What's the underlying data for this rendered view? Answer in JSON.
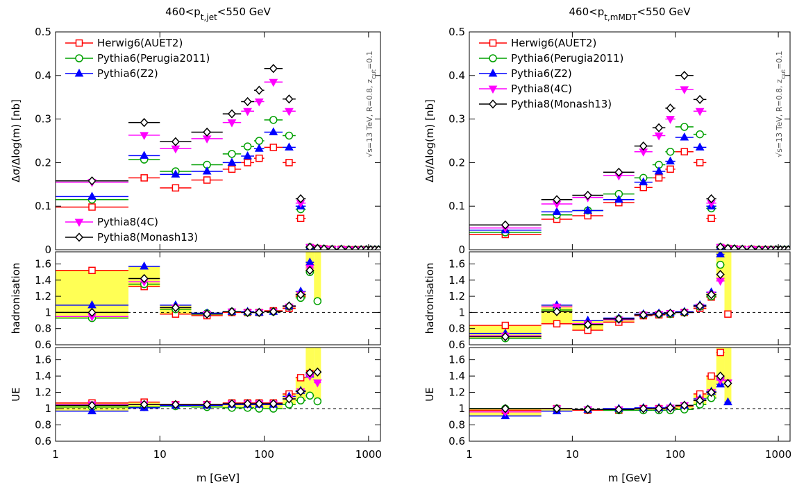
{
  "chart_data": [
    {
      "type": "errorbar",
      "title": {
        "pre": "460<p",
        "sub": "t,jet",
        "post": "<550 GeV"
      },
      "annotation": {
        "pre": "√s=13 TeV, R=0.8, z",
        "sub": "cut",
        "post": "=0.1"
      },
      "xlabel": "m [GeV]",
      "xscale": "log",
      "xlim": [
        1,
        1300
      ],
      "xticks": [
        1,
        10,
        100,
        1000
      ],
      "series": [
        {
          "name": "Herwig6(AUET2)",
          "color": "#ff0000",
          "marker": "square"
        },
        {
          "name": "Pythia6(Perugia2011)",
          "color": "#00a000",
          "marker": "circle"
        },
        {
          "name": "Pythia6(Z2)",
          "color": "#0000ff",
          "marker": "triangle-up"
        },
        {
          "name": "Pythia8(4C)",
          "color": "#ff00ff",
          "marker": "triangle-down"
        },
        {
          "name": "Pythia8(Monash13)",
          "color": "#000000",
          "marker": "diamond"
        }
      ],
      "panels": [
        {
          "ylabel": "Δσ/Δlog(m) [nb]",
          "ylim": [
            0,
            0.5
          ],
          "yticks": [
            0,
            0.1,
            0.2,
            0.3,
            0.4,
            0.5
          ],
          "bins": [
            1,
            5,
            10,
            20,
            40,
            60,
            80,
            100,
            150,
            200,
            250,
            300,
            350,
            400,
            500,
            600,
            700,
            800,
            900,
            1000,
            1100,
            1200,
            1300
          ],
          "values": [
            [
              0.098,
              0.165,
              0.142,
              0.16,
              0.185,
              0.2,
              0.21,
              0.235,
              0.2,
              0.072,
              0.005,
              0.003,
              0.002,
              0.001,
              0.001,
              0,
              0,
              0,
              0,
              0,
              0,
              0
            ],
            [
              0.115,
              0.207,
              0.18,
              0.195,
              0.22,
              0.237,
              0.25,
              0.298,
              0.262,
              0.093,
              0.006,
              0.003,
              0.002,
              0.001,
              0.001,
              0,
              0,
              0,
              0,
              0,
              0,
              0
            ],
            [
              0.122,
              0.216,
              0.173,
              0.18,
              0.2,
              0.215,
              0.232,
              0.27,
              0.235,
              0.1,
              0.006,
              0.003,
              0.002,
              0.001,
              0.001,
              0,
              0,
              0,
              0,
              0,
              0,
              0
            ],
            [
              0.155,
              0.263,
              0.232,
              0.255,
              0.292,
              0.318,
              0.34,
              0.385,
              0.318,
              0.107,
              0.006,
              0.003,
              0.002,
              0.001,
              0.001,
              0,
              0,
              0,
              0,
              0,
              0,
              0
            ],
            [
              0.158,
              0.292,
              0.248,
              0.27,
              0.312,
              0.34,
              0.366,
              0.416,
              0.346,
              0.117,
              0.006,
              0.003,
              0.002,
              0.001,
              0.001,
              0,
              0,
              0,
              0,
              0,
              0,
              0
            ]
          ]
        },
        {
          "ylabel": "hadronisation",
          "ylim": [
            0.6,
            1.75
          ],
          "yticks": [
            0.6,
            0.8,
            1,
            1.2,
            1.4,
            1.6
          ],
          "reference": 1,
          "bins": [
            1,
            5,
            10,
            20,
            40,
            60,
            80,
            100,
            150,
            200,
            250,
            300,
            350
          ],
          "band": {
            "color": "#ffff55",
            "low": [
              0.93,
              1.32,
              0.98,
              0.96,
              1.0,
              1.0,
              1.0,
              1.01,
              1.05,
              1.18,
              1.5,
              1.14
            ],
            "high": [
              1.52,
              1.57,
              1.09,
              0.99,
              1.01,
              1.01,
              1.0,
              1.02,
              1.08,
              1.26,
              1.75,
              1.75
            ]
          },
          "values": [
            [
              1.52,
              1.32,
              0.98,
              0.96,
              1.0,
              1.0,
              1.0,
              1.02,
              1.05,
              1.2,
              null,
              null
            ],
            [
              0.93,
              1.35,
              1.04,
              0.99,
              1.01,
              1.0,
              1.0,
              1.01,
              1.07,
              1.18,
              1.5,
              1.14
            ],
            [
              1.09,
              1.57,
              1.09,
              0.99,
              1.01,
              1.01,
              1.0,
              1.01,
              1.08,
              1.26,
              1.62,
              null
            ],
            [
              0.95,
              1.38,
              1.06,
              0.98,
              1.01,
              1.0,
              1.0,
              1.01,
              1.07,
              1.22,
              1.55,
              null
            ],
            [
              1.0,
              1.42,
              1.06,
              0.98,
              1.01,
              1.0,
              1.0,
              1.01,
              1.08,
              1.22,
              1.52,
              null
            ]
          ]
        },
        {
          "ylabel": "UE",
          "ylim": [
            0.6,
            1.75
          ],
          "yticks": [
            0.6,
            0.8,
            1,
            1.2,
            1.4,
            1.6
          ],
          "reference": 1,
          "bins": [
            1,
            5,
            10,
            20,
            40,
            60,
            80,
            100,
            150,
            200,
            250,
            300,
            350
          ],
          "band": {
            "color": "#ffff55",
            "low": [
              0.97,
              1.01,
              1.03,
              1.02,
              1.01,
              1.01,
              1.0,
              1.0,
              1.05,
              1.1,
              1.16,
              1.09
            ],
            "high": [
              1.07,
              1.08,
              1.05,
              1.05,
              1.07,
              1.07,
              1.07,
              1.07,
              1.18,
              1.38,
              1.75,
              1.75
            ]
          },
          "values": [
            [
              1.07,
              1.08,
              1.05,
              1.05,
              1.07,
              1.07,
              1.07,
              1.07,
              1.18,
              1.38,
              1.43,
              null
            ],
            [
              1.02,
              1.02,
              1.03,
              1.02,
              1.01,
              1.01,
              1.0,
              1.0,
              1.05,
              1.1,
              1.16,
              1.09
            ],
            [
              0.97,
              1.01,
              1.04,
              1.04,
              1.05,
              1.05,
              1.05,
              1.05,
              1.15,
              1.22,
              1.42,
              null
            ],
            [
              1.05,
              1.05,
              1.05,
              1.05,
              1.06,
              1.06,
              1.06,
              1.06,
              1.12,
              1.21,
              1.4,
              1.32
            ],
            [
              1.04,
              1.05,
              1.05,
              1.05,
              1.06,
              1.06,
              1.06,
              1.06,
              1.12,
              1.21,
              1.44,
              1.45
            ]
          ]
        }
      ]
    },
    {
      "type": "errorbar",
      "title": {
        "pre": "460<p",
        "sub": "t,mMDT",
        "post": "<550 GeV"
      },
      "annotation": {
        "pre": "√s=13 TeV, R=0.8, z",
        "sub": "cut",
        "post": "=0.1"
      },
      "xlabel": "m [GeV]",
      "xscale": "log",
      "xlim": [
        1,
        1300
      ],
      "xticks": [
        1,
        10,
        100,
        1000
      ],
      "series": [
        {
          "name": "Herwig6(AUET2)",
          "color": "#ff0000",
          "marker": "square"
        },
        {
          "name": "Pythia6(Perugia2011)",
          "color": "#00a000",
          "marker": "circle"
        },
        {
          "name": "Pythia6(Z2)",
          "color": "#0000ff",
          "marker": "triangle-up"
        },
        {
          "name": "Pythia8(4C)",
          "color": "#ff00ff",
          "marker": "triangle-down"
        },
        {
          "name": "Pythia8(Monash13)",
          "color": "#000000",
          "marker": "diamond"
        }
      ],
      "panels": [
        {
          "ylabel": "Δσ/Δlog(m) [nb]",
          "ylim": [
            0,
            0.5
          ],
          "yticks": [
            0,
            0.1,
            0.2,
            0.3,
            0.4,
            0.5
          ],
          "bins": [
            1,
            5,
            10,
            20,
            40,
            60,
            80,
            100,
            150,
            200,
            250,
            300,
            350,
            400,
            500,
            600,
            700,
            800,
            900,
            1000,
            1100,
            1200,
            1300
          ],
          "values": [
            [
              0.035,
              0.07,
              0.078,
              0.108,
              0.143,
              0.165,
              0.185,
              0.225,
              0.2,
              0.072,
              0.005,
              0.003,
              0.002,
              0.001,
              0.001,
              0,
              0,
              0,
              0,
              0,
              0,
              0
            ],
            [
              0.04,
              0.08,
              0.09,
              0.128,
              0.165,
              0.195,
              0.225,
              0.282,
              0.265,
              0.095,
              0.006,
              0.003,
              0.002,
              0.001,
              0.001,
              0,
              0,
              0,
              0,
              0,
              0,
              0
            ],
            [
              0.045,
              0.087,
              0.09,
              0.115,
              0.155,
              0.18,
              0.203,
              0.258,
              0.235,
              0.1,
              0.006,
              0.003,
              0.002,
              0.001,
              0.001,
              0,
              0,
              0,
              0,
              0,
              0,
              0
            ],
            [
              0.05,
              0.105,
              0.12,
              0.17,
              0.225,
              0.262,
              0.3,
              0.368,
              0.318,
              0.107,
              0.006,
              0.003,
              0.002,
              0.001,
              0.001,
              0,
              0,
              0,
              0,
              0,
              0,
              0
            ],
            [
              0.057,
              0.115,
              0.125,
              0.178,
              0.238,
              0.28,
              0.325,
              0.4,
              0.345,
              0.117,
              0.006,
              0.003,
              0.002,
              0.001,
              0.001,
              0,
              0,
              0,
              0,
              0,
              0,
              0
            ]
          ]
        },
        {
          "ylabel": "hadronisation",
          "ylim": [
            0.6,
            1.75
          ],
          "yticks": [
            0.6,
            0.8,
            1,
            1.2,
            1.4,
            1.6
          ],
          "reference": 1,
          "bins": [
            1,
            5,
            10,
            20,
            40,
            60,
            80,
            100,
            150,
            200,
            250,
            300,
            350
          ],
          "band": {
            "color": "#ffff55",
            "low": [
              0.68,
              0.86,
              0.78,
              0.88,
              0.96,
              0.97,
              0.98,
              1.0,
              1.05,
              1.19,
              1.39,
              0.98
            ],
            "high": [
              0.84,
              1.09,
              0.9,
              0.93,
              0.98,
              0.99,
              0.99,
              1.01,
              1.09,
              1.25,
              1.75,
              1.75
            ]
          },
          "values": [
            [
              0.84,
              0.86,
              0.78,
              0.88,
              0.96,
              0.97,
              0.98,
              1.0,
              1.05,
              1.19,
              null,
              0.98
            ],
            [
              0.68,
              1.03,
              0.85,
              0.92,
              0.97,
              0.98,
              0.98,
              1.0,
              1.07,
              1.2,
              1.59,
              null
            ],
            [
              0.74,
              1.09,
              0.9,
              0.93,
              0.98,
              0.99,
              0.99,
              1.01,
              1.09,
              1.25,
              1.72,
              null
            ],
            [
              0.71,
              1.07,
              0.86,
              0.91,
              0.97,
              0.98,
              0.99,
              1.0,
              1.07,
              1.22,
              1.39,
              null
            ],
            [
              0.7,
              1.01,
              0.85,
              0.92,
              0.97,
              0.98,
              0.99,
              1.0,
              1.08,
              1.22,
              1.47,
              null
            ]
          ]
        },
        {
          "ylabel": "UE",
          "ylim": [
            0.6,
            1.75
          ],
          "yticks": [
            0.6,
            0.8,
            1,
            1.2,
            1.4,
            1.6
          ],
          "reference": 1,
          "bins": [
            1,
            5,
            10,
            20,
            40,
            60,
            80,
            100,
            150,
            200,
            250,
            300,
            350
          ],
          "band": {
            "color": "#ffff55",
            "low": [
              0.91,
              0.97,
              0.98,
              0.98,
              0.98,
              0.98,
              0.98,
              0.99,
              1.05,
              1.13,
              1.3,
              1.08
            ],
            "high": [
              1.0,
              1.0,
              0.99,
              1.0,
              1.01,
              1.01,
              1.02,
              1.04,
              1.18,
              1.4,
              1.75,
              1.75
            ]
          },
          "values": [
            [
              0.98,
              1.0,
              0.98,
              0.98,
              1.0,
              1.0,
              1.0,
              1.03,
              1.18,
              1.4,
              1.69,
              null
            ],
            [
              1.0,
              1.0,
              0.99,
              0.98,
              0.98,
              0.98,
              0.98,
              0.99,
              1.05,
              1.13,
              1.38,
              null
            ],
            [
              0.91,
              0.97,
              0.99,
              1.0,
              1.01,
              1.01,
              1.02,
              1.04,
              1.12,
              1.21,
              1.3,
              1.08
            ],
            [
              0.96,
              1.0,
              0.99,
              0.99,
              1.0,
              1.0,
              1.01,
              1.04,
              1.1,
              1.2,
              1.35,
              1.32
            ],
            [
              1.0,
              1.0,
              0.99,
              0.99,
              1.0,
              1.0,
              1.01,
              1.04,
              1.1,
              1.2,
              1.4,
              1.31
            ]
          ]
        }
      ]
    }
  ]
}
